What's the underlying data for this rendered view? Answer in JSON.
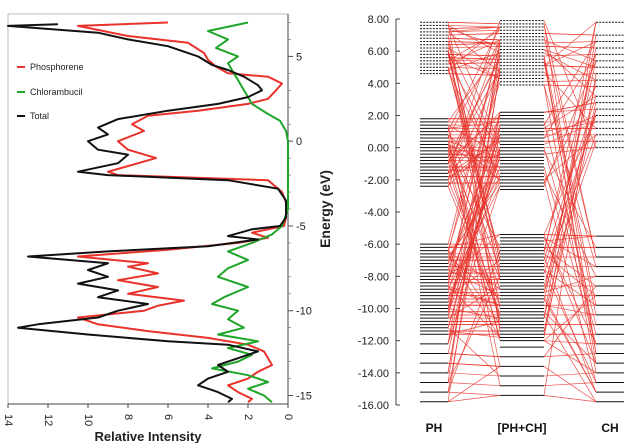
{
  "colors": {
    "phosphorene": "#e8322a",
    "chlorambucil": "#1fa52a",
    "total": "#111111",
    "connector": "#e8322a",
    "level": "#111111"
  },
  "chart_data": [
    {
      "type": "line",
      "orientation": "horizontal",
      "title": "",
      "xlabel": "Relative Intensity",
      "ylabel": "Energy (eV)",
      "xlim": [
        14,
        0
      ],
      "ylim": [
        -15.5,
        7.5
      ],
      "x_ticks": [
        "14",
        "12",
        "10",
        "8",
        "6",
        "4",
        "2",
        "0"
      ],
      "y_ticks": [
        "5",
        "0",
        "-5",
        "-10",
        "-15"
      ],
      "legend": {
        "placement": "top-left",
        "entries": [
          "Phosphorene",
          "Chlorambucil",
          "Total"
        ]
      },
      "series": [
        {
          "name": "Phosphorene",
          "color": "#e8322a",
          "points": [
            [
              6.0,
              7.0
            ],
            [
              10.5,
              6.8
            ],
            [
              8.0,
              6.2
            ],
            [
              5.0,
              5.8
            ],
            [
              4.2,
              5.2
            ],
            [
              4.0,
              4.8
            ],
            [
              3.6,
              4.4
            ],
            [
              3.0,
              4.0
            ],
            [
              1.0,
              3.8
            ],
            [
              0.3,
              3.4
            ],
            [
              0.6,
              3.0
            ],
            [
              1.0,
              2.5
            ],
            [
              2.0,
              2.2
            ],
            [
              4.5,
              1.8
            ],
            [
              7.0,
              1.5
            ],
            [
              7.8,
              1.0
            ],
            [
              7.2,
              0.6
            ],
            [
              8.5,
              0.0
            ],
            [
              8.0,
              -0.5
            ],
            [
              6.6,
              -1.0
            ],
            [
              7.8,
              -1.4
            ],
            [
              9.0,
              -1.8
            ],
            [
              8.5,
              -2.0
            ],
            [
              1.0,
              -2.3
            ],
            [
              0.3,
              -3.0
            ],
            [
              0.1,
              -3.6
            ],
            [
              0.1,
              -4.5
            ],
            [
              0.2,
              -5.0
            ],
            [
              1.0,
              -5.2
            ],
            [
              1.8,
              -5.4
            ],
            [
              1.0,
              -5.7
            ],
            [
              2.5,
              -6.0
            ],
            [
              6.0,
              -6.4
            ],
            [
              10.5,
              -6.8
            ],
            [
              7.0,
              -7.2
            ],
            [
              8.0,
              -7.4
            ],
            [
              6.5,
              -7.8
            ],
            [
              8.5,
              -8.2
            ],
            [
              6.5,
              -8.6
            ],
            [
              8.0,
              -9.0
            ],
            [
              5.2,
              -9.4
            ],
            [
              6.5,
              -9.7
            ],
            [
              7.2,
              -10.0
            ],
            [
              10.5,
              -10.4
            ],
            [
              9.5,
              -10.8
            ],
            [
              7.0,
              -11.2
            ],
            [
              4.0,
              -11.6
            ],
            [
              2.0,
              -12.0
            ],
            [
              1.2,
              -12.4
            ],
            [
              1.0,
              -12.8
            ],
            [
              0.8,
              -13.2
            ],
            [
              1.5,
              -13.6
            ],
            [
              2.0,
              -14.0
            ],
            [
              3.0,
              -14.4
            ],
            [
              2.5,
              -14.8
            ],
            [
              1.8,
              -15.2
            ],
            [
              2.0,
              -15.4
            ]
          ]
        },
        {
          "name": "Chlorambucil",
          "color": "#1fa52a",
          "points": [
            [
              2.0,
              7.0
            ],
            [
              4.0,
              6.5
            ],
            [
              3.0,
              6.0
            ],
            [
              3.6,
              5.5
            ],
            [
              2.5,
              5.0
            ],
            [
              3.0,
              4.6
            ],
            [
              2.8,
              4.2
            ],
            [
              2.5,
              3.6
            ],
            [
              2.2,
              3.0
            ],
            [
              2.0,
              2.6
            ],
            [
              1.8,
              2.2
            ],
            [
              1.0,
              1.6
            ],
            [
              0.4,
              1.2
            ],
            [
              0.1,
              0.6
            ],
            [
              0.0,
              0.0
            ],
            [
              0.0,
              -4.0
            ],
            [
              0.3,
              -5.0
            ],
            [
              0.8,
              -5.5
            ],
            [
              1.8,
              -6.0
            ],
            [
              3.0,
              -6.5
            ],
            [
              2.0,
              -7.0
            ],
            [
              3.0,
              -7.5
            ],
            [
              3.5,
              -8.0
            ],
            [
              2.0,
              -8.6
            ],
            [
              3.2,
              -9.2
            ],
            [
              3.8,
              -9.6
            ],
            [
              2.5,
              -10.0
            ],
            [
              3.0,
              -10.5
            ],
            [
              2.2,
              -11.0
            ],
            [
              3.5,
              -11.4
            ],
            [
              1.5,
              -11.8
            ],
            [
              3.0,
              -12.2
            ],
            [
              1.8,
              -12.6
            ],
            [
              2.5,
              -13.0
            ],
            [
              3.8,
              -13.4
            ],
            [
              2.0,
              -13.8
            ],
            [
              1.0,
              -14.2
            ],
            [
              2.0,
              -14.6
            ],
            [
              1.2,
              -15.0
            ],
            [
              0.8,
              -15.4
            ]
          ]
        },
        {
          "name": "Total",
          "color": "#111111",
          "points": [
            [
              11.5,
              6.9
            ],
            [
              14.0,
              6.8
            ],
            [
              9.5,
              6.4
            ],
            [
              8.0,
              6.0
            ],
            [
              6.0,
              5.6
            ],
            [
              4.5,
              5.0
            ],
            [
              3.8,
              4.5
            ],
            [
              3.0,
              4.2
            ],
            [
              2.2,
              3.8
            ],
            [
              1.5,
              3.3
            ],
            [
              1.3,
              3.0
            ],
            [
              2.0,
              2.6
            ],
            [
              3.5,
              2.2
            ],
            [
              6.0,
              1.8
            ],
            [
              8.5,
              1.3
            ],
            [
              9.5,
              0.8
            ],
            [
              9.0,
              0.4
            ],
            [
              10.0,
              0.0
            ],
            [
              9.5,
              -0.5
            ],
            [
              8.0,
              -0.8
            ],
            [
              8.5,
              -1.3
            ],
            [
              10.5,
              -1.8
            ],
            [
              9.0,
              -2.0
            ],
            [
              3.0,
              -2.3
            ],
            [
              0.5,
              -2.8
            ],
            [
              0.1,
              -3.5
            ],
            [
              0.1,
              -4.5
            ],
            [
              0.4,
              -5.0
            ],
            [
              1.8,
              -5.2
            ],
            [
              3.0,
              -5.6
            ],
            [
              1.5,
              -5.8
            ],
            [
              4.0,
              -6.2
            ],
            [
              9.0,
              -6.5
            ],
            [
              13.0,
              -6.8
            ],
            [
              9.0,
              -7.2
            ],
            [
              10.0,
              -7.6
            ],
            [
              9.0,
              -8.0
            ],
            [
              10.5,
              -8.4
            ],
            [
              8.5,
              -8.8
            ],
            [
              9.5,
              -9.2
            ],
            [
              7.0,
              -9.6
            ],
            [
              8.5,
              -10.0
            ],
            [
              9.5,
              -10.4
            ],
            [
              12.5,
              -10.8
            ],
            [
              13.5,
              -11.0
            ],
            [
              10.0,
              -11.4
            ],
            [
              6.0,
              -11.8
            ],
            [
              3.0,
              -12.0
            ],
            [
              1.5,
              -12.4
            ],
            [
              2.5,
              -12.8
            ],
            [
              3.5,
              -13.2
            ],
            [
              3.0,
              -13.6
            ],
            [
              4.0,
              -14.0
            ],
            [
              4.5,
              -14.4
            ],
            [
              3.5,
              -14.8
            ],
            [
              2.8,
              -15.2
            ],
            [
              3.0,
              -15.4
            ]
          ]
        }
      ]
    },
    {
      "type": "energy-level-diagram",
      "title": "",
      "ylabel": "",
      "ylim": [
        -16,
        8
      ],
      "y_ticks": [
        "8.00",
        "6.00",
        "4.00",
        "2.00",
        "0.00",
        "-2.00",
        "-4.00",
        "-6.00",
        "-8.00",
        "-10.00",
        "-12.00",
        "-14.00",
        "-16.00"
      ],
      "columns": [
        {
          "label": "PH",
          "levels": [
            7.8,
            7.6,
            7.4,
            7.2,
            7.0,
            6.8,
            6.6,
            6.4,
            6.2,
            6.0,
            5.8,
            5.6,
            5.4,
            5.2,
            5.0,
            4.8,
            4.6,
            1.8,
            1.6,
            1.4,
            1.2,
            1.0,
            0.8,
            0.6,
            0.4,
            0.2,
            0.0,
            -0.2,
            -0.4,
            -0.6,
            -0.8,
            -1.0,
            -1.2,
            -1.4,
            -1.6,
            -1.8,
            -2.0,
            -2.2,
            -2.4,
            -6.0,
            -6.2,
            -6.4,
            -6.6,
            -6.8,
            -7.0,
            -7.2,
            -7.4,
            -7.6,
            -7.8,
            -8.0,
            -8.2,
            -8.4,
            -8.6,
            -8.8,
            -9.0,
            -9.2,
            -9.4,
            -9.6,
            -9.8,
            -10.0,
            -10.2,
            -10.4,
            -10.6,
            -10.8,
            -11.0,
            -11.2,
            -11.4,
            -11.6,
            -12.2,
            -12.8,
            -13.4,
            -14.0,
            -14.6,
            -15.2,
            -15.8
          ]
        },
        {
          "label": "[PH+CH]",
          "levels": [
            7.9,
            7.7,
            7.5,
            7.3,
            7.1,
            6.9,
            6.7,
            6.5,
            6.3,
            6.1,
            5.9,
            5.7,
            5.5,
            5.3,
            5.1,
            4.9,
            4.7,
            4.5,
            4.3,
            4.1,
            3.9,
            2.2,
            2.0,
            1.8,
            1.6,
            1.4,
            1.2,
            1.0,
            0.8,
            0.6,
            0.4,
            0.2,
            0.0,
            -0.2,
            -0.4,
            -0.6,
            -0.8,
            -1.0,
            -1.2,
            -1.4,
            -1.6,
            -1.8,
            -2.0,
            -2.2,
            -2.4,
            -2.6,
            -5.4,
            -5.6,
            -5.8,
            -6.0,
            -6.2,
            -6.4,
            -6.6,
            -6.8,
            -7.0,
            -7.2,
            -7.4,
            -7.6,
            -7.8,
            -8.0,
            -8.2,
            -8.4,
            -8.6,
            -8.8,
            -9.0,
            -9.2,
            -9.4,
            -9.6,
            -9.8,
            -10.0,
            -10.2,
            -10.4,
            -10.6,
            -10.8,
            -11.0,
            -11.2,
            -11.4,
            -11.6,
            -11.8,
            -12.0,
            -12.4,
            -13.0,
            -13.6,
            -14.2,
            -14.8,
            -15.4
          ]
        },
        {
          "label": "CH",
          "levels": [
            7.8,
            7.0,
            6.6,
            6.2,
            5.8,
            5.4,
            5.0,
            4.6,
            4.2,
            3.8,
            3.2,
            2.8,
            2.4,
            2.0,
            1.6,
            1.2,
            0.8,
            0.4,
            0.0,
            -5.5,
            -6.2,
            -6.8,
            -7.4,
            -8.0,
            -8.6,
            -9.2,
            -9.8,
            -10.4,
            -11.0,
            -11.6,
            -12.2,
            -12.8,
            -13.4,
            -14.0,
            -14.6,
            -15.2,
            -15.8
          ]
        }
      ]
    }
  ]
}
